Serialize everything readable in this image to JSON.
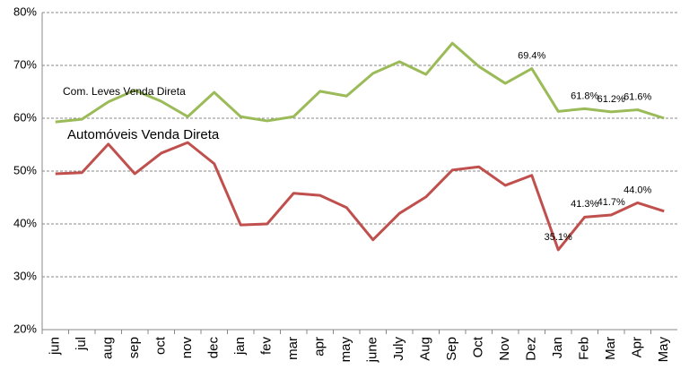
{
  "chart_data": {
    "type": "line",
    "categories": [
      "jun",
      "jul",
      "aug",
      "sep",
      "oct",
      "nov",
      "dec",
      "jan",
      "fev",
      "mar",
      "apr",
      "may",
      "june",
      "July",
      "Aug",
      "Sep",
      "Oct",
      "Nov",
      "Dez",
      "Jan",
      "Feb",
      "Mar",
      "Apr",
      "May"
    ],
    "series": [
      {
        "name": "Com. Leves Venda Direta",
        "color": "#9bbb59",
        "values": [
          59.3,
          59.8,
          63.1,
          65.3,
          63.2,
          60.3,
          64.9,
          60.3,
          59.5,
          60.3,
          65.1,
          64.2,
          68.5,
          70.7,
          68.3,
          74.2,
          69.8,
          66.6,
          69.4,
          61.3,
          61.8,
          61.2,
          61.6,
          60.0
        ],
        "value_labels": [
          null,
          null,
          null,
          null,
          null,
          null,
          null,
          null,
          null,
          null,
          null,
          null,
          null,
          null,
          null,
          null,
          null,
          null,
          "69.4%",
          null,
          "61.8%",
          "61.2%",
          "61.6%",
          null
        ]
      },
      {
        "name": "Automóveis Venda Direta",
        "color": "#c0504d",
        "values": [
          49.5,
          49.7,
          55.1,
          49.5,
          53.4,
          55.4,
          51.4,
          39.8,
          40.0,
          45.8,
          45.4,
          43.1,
          37.0,
          42.0,
          45.1,
          50.2,
          50.8,
          47.3,
          49.2,
          35.1,
          41.3,
          41.7,
          44.0,
          42.4
        ],
        "value_labels": [
          null,
          null,
          null,
          null,
          null,
          null,
          null,
          null,
          null,
          null,
          null,
          null,
          null,
          null,
          null,
          null,
          null,
          null,
          null,
          "35.1%",
          "41.3%",
          "41.7%",
          "44.0%",
          null
        ]
      }
    ],
    "ylim": [
      20,
      80
    ],
    "yticks": [
      {
        "value": 20,
        "label": "20%"
      },
      {
        "value": 30,
        "label": "30%"
      },
      {
        "value": 40,
        "label": "40%"
      },
      {
        "value": 50,
        "label": "50%"
      },
      {
        "value": 60,
        "label": "60%"
      },
      {
        "value": 70,
        "label": "70%"
      },
      {
        "value": 80,
        "label": "80%"
      }
    ],
    "grid": true
  }
}
